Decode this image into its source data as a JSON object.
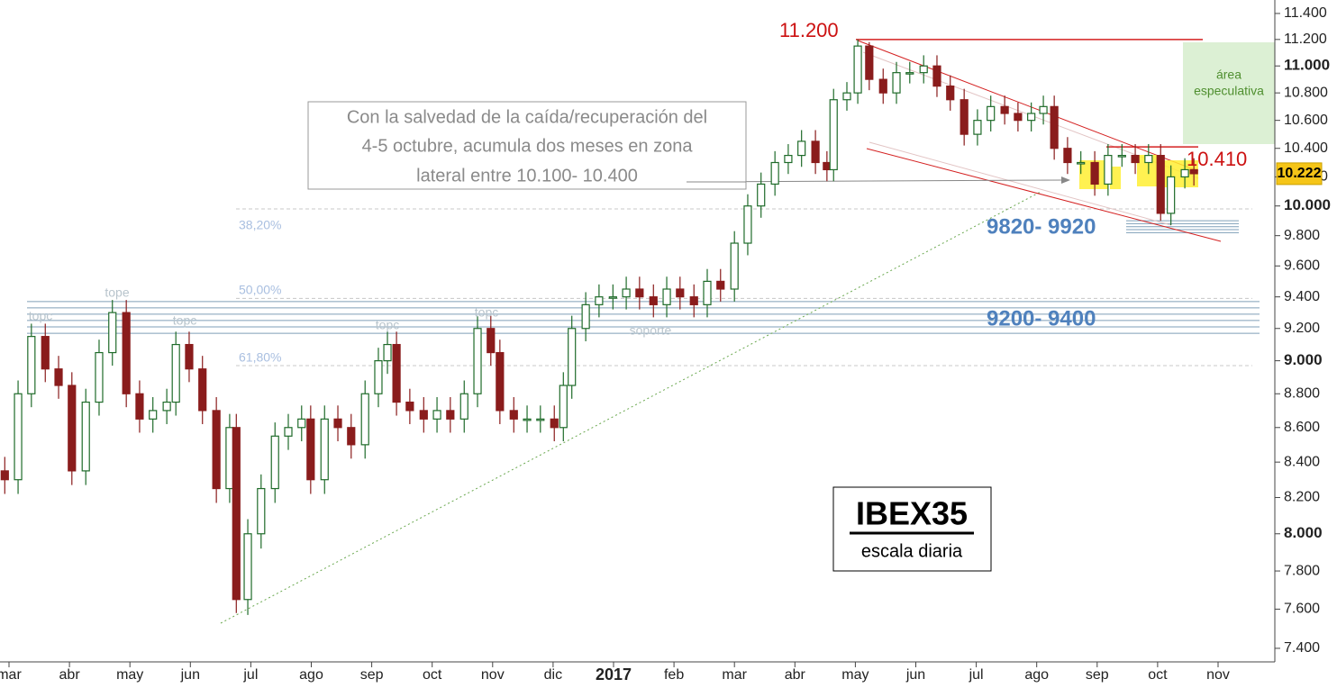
{
  "chart_data": {
    "type": "candlestick",
    "log_scale": true,
    "up_color": "#1f6b2a",
    "down_color": "#8a1c1c",
    "xlim": [
      -0.149,
      20.939
    ],
    "ylim": [
      7332,
      11505
    ],
    "xticks": [
      {
        "value": 0,
        "label": "mar"
      },
      {
        "value": 1,
        "label": "abr"
      },
      {
        "value": 2,
        "label": "may"
      },
      {
        "value": 3,
        "label": "jun"
      },
      {
        "value": 4,
        "label": "jul"
      },
      {
        "value": 5,
        "label": "ago"
      },
      {
        "value": 6,
        "label": "sep"
      },
      {
        "value": 7,
        "label": "oct"
      },
      {
        "value": 8,
        "label": "nov"
      },
      {
        "value": 9,
        "label": "dic"
      },
      {
        "value": 10,
        "label": "2017"
      },
      {
        "value": 11,
        "label": "feb"
      },
      {
        "value": 12,
        "label": "mar"
      },
      {
        "value": 13,
        "label": "abr"
      },
      {
        "value": 14,
        "label": "may"
      },
      {
        "value": 15,
        "label": "jun"
      },
      {
        "value": 16,
        "label": "jul"
      },
      {
        "value": 17,
        "label": "ago"
      },
      {
        "value": 18,
        "label": "sep"
      },
      {
        "value": 19,
        "label": "oct"
      },
      {
        "value": 20,
        "label": "nov"
      }
    ],
    "yticks": [
      {
        "value": 7400,
        "label": "7.400"
      },
      {
        "value": 7600,
        "label": "7.600"
      },
      {
        "value": 7800,
        "label": "7.800"
      },
      {
        "value": 8000,
        "label": "8.000"
      },
      {
        "value": 8200,
        "label": "8.200"
      },
      {
        "value": 8400,
        "label": "8.400"
      },
      {
        "value": 8600,
        "label": "8.600"
      },
      {
        "value": 8800,
        "label": "8.800"
      },
      {
        "value": 9000,
        "label": "9.000"
      },
      {
        "value": 9200,
        "label": "9.200"
      },
      {
        "value": 9400,
        "label": "9.400"
      },
      {
        "value": 9600,
        "label": "9.600"
      },
      {
        "value": 9800,
        "label": "9.800"
      },
      {
        "value": 10000,
        "label": "10.000"
      },
      {
        "value": 10200,
        "label": "10.200"
      },
      {
        "value": 10400,
        "label": "10.400"
      },
      {
        "value": 10600,
        "label": "10.600"
      },
      {
        "value": 10800,
        "label": "10.800"
      },
      {
        "value": 11000,
        "label": "11.000"
      },
      {
        "value": 11200,
        "label": "11.200"
      },
      {
        "value": 11400,
        "label": "11.400"
      }
    ],
    "x": [
      -0.07,
      0.15,
      0.37,
      0.6,
      0.82,
      1.04,
      1.27,
      1.49,
      1.71,
      1.94,
      2.16,
      2.38,
      2.61,
      2.76,
      2.98,
      3.2,
      3.43,
      3.65,
      3.76,
      3.95,
      4.17,
      4.4,
      4.62,
      4.84,
      4.99,
      5.22,
      5.44,
      5.66,
      5.89,
      6.11,
      6.26,
      6.41,
      6.63,
      6.86,
      7.08,
      7.3,
      7.53,
      7.75,
      7.97,
      8.12,
      8.35,
      8.57,
      8.79,
      9.02,
      9.17,
      9.31,
      9.54,
      9.76,
      9.99,
      10.21,
      10.43,
      10.66,
      10.88,
      11.1,
      11.33,
      11.55,
      11.77,
      12.0,
      12.22,
      12.44,
      12.67,
      12.89,
      13.11,
      13.34,
      13.53,
      13.64,
      13.86,
      14.04,
      14.23,
      14.46,
      14.68,
      14.9,
      15.13,
      15.35,
      15.57,
      15.8,
      16.02,
      16.24,
      16.47,
      16.69,
      16.91,
      17.11,
      17.29,
      17.51,
      17.73,
      17.96,
      18.18,
      18.41,
      18.63,
      18.85,
      19.05,
      19.22,
      19.45,
      19.6
    ],
    "open": [
      8350,
      8300,
      8800,
      9150,
      8950,
      8850,
      8350,
      8750,
      9050,
      9300,
      8800,
      8650,
      8700,
      8750,
      9100,
      8950,
      8700,
      8250,
      8600,
      7650,
      8000,
      8250,
      8550,
      8600,
      8650,
      8300,
      8650,
      8600,
      8500,
      8800,
      9000,
      9100,
      8750,
      8700,
      8650,
      8700,
      8650,
      8800,
      9200,
      9050,
      8700,
      8650,
      8650,
      8650,
      8600,
      8850,
      9200,
      9350,
      9400,
      9400,
      9450,
      9400,
      9350,
      9450,
      9400,
      9350,
      9500,
      9450,
      9750,
      10000,
      10150,
      10300,
      10350,
      10450,
      10300,
      10250,
      10750,
      10800,
      11150,
      10900,
      10800,
      10950,
      10950,
      11000,
      10850,
      10750,
      10500,
      10600,
      10700,
      10650,
      10600,
      10650,
      10700,
      10400,
      10300,
      10300,
      10150,
      10350,
      10350,
      10300,
      10350,
      9950,
      10200,
      10250
    ],
    "high": [
      8430,
      8880,
      9230,
      9230,
      9030,
      8930,
      8830,
      9130,
      9380,
      9380,
      8880,
      8780,
      8830,
      9180,
      9180,
      9030,
      8780,
      8680,
      8680,
      8080,
      8330,
      8630,
      8680,
      8730,
      8730,
      8730,
      8730,
      8680,
      8880,
      9080,
      9180,
      9180,
      8830,
      8780,
      8780,
      8780,
      8880,
      9280,
      9280,
      9130,
      8780,
      8730,
      8730,
      8730,
      8930,
      9280,
      9430,
      9480,
      9480,
      9530,
      9530,
      9480,
      9530,
      9530,
      9480,
      9580,
      9580,
      9830,
      10080,
      10230,
      10380,
      10430,
      10530,
      10530,
      10380,
      10830,
      10880,
      11200,
      11180,
      10980,
      11030,
      11030,
      11080,
      11080,
      10930,
      10830,
      10680,
      10780,
      10780,
      10730,
      10730,
      10780,
      10780,
      10480,
      10380,
      10380,
      10430,
      10430,
      10430,
      10430,
      10430,
      10280,
      10330,
      10330
    ],
    "low": [
      8220,
      8220,
      8720,
      8870,
      8770,
      8270,
      8270,
      8670,
      8970,
      8720,
      8570,
      8570,
      8620,
      8670,
      8870,
      8620,
      8170,
      8170,
      7580,
      7570,
      7920,
      8170,
      8470,
      8520,
      8220,
      8220,
      8520,
      8420,
      8420,
      8720,
      8920,
      8670,
      8620,
      8570,
      8570,
      8570,
      8570,
      8720,
      8970,
      8620,
      8570,
      8570,
      8570,
      8520,
      8520,
      8770,
      9120,
      9270,
      9320,
      9320,
      9320,
      9270,
      9270,
      9320,
      9270,
      9270,
      9370,
      9370,
      9670,
      9920,
      10070,
      10220,
      10270,
      10220,
      10170,
      10170,
      10670,
      10720,
      10820,
      10720,
      10720,
      10870,
      10870,
      10770,
      10670,
      10420,
      10420,
      10520,
      10570,
      10520,
      10520,
      10570,
      10320,
      10220,
      10220,
      10070,
      10070,
      10270,
      10220,
      10220,
      9900,
      9870,
      10120,
      10140
    ],
    "close": [
      8300,
      8800,
      9150,
      8950,
      8850,
      8350,
      8750,
      9050,
      9300,
      8800,
      8650,
      8700,
      8750,
      9100,
      8950,
      8700,
      8250,
      8600,
      7650,
      8000,
      8250,
      8550,
      8600,
      8650,
      8300,
      8650,
      8600,
      8500,
      8800,
      9000,
      9100,
      8750,
      8700,
      8650,
      8700,
      8650,
      8800,
      9200,
      9050,
      8700,
      8650,
      8650,
      8650,
      8600,
      8850,
      9200,
      9350,
      9400,
      9400,
      9450,
      9400,
      9350,
      9450,
      9400,
      9350,
      9500,
      9450,
      9750,
      10000,
      10150,
      10300,
      10350,
      10450,
      10300,
      10250,
      10750,
      10800,
      11150,
      10900,
      10800,
      10950,
      10950,
      11000,
      10850,
      10750,
      10500,
      10600,
      10700,
      10650,
      10600,
      10650,
      10700,
      10400,
      10300,
      10300,
      10150,
      10350,
      10350,
      10300,
      10350,
      9950,
      10200,
      10250,
      10222
    ],
    "last_price": {
      "value": 10222,
      "label": "10.222"
    },
    "levels": [
      {
        "label": "11.200",
        "value": 11200
      },
      {
        "label": "10.410",
        "value": 10410
      }
    ],
    "fibonacci": [
      {
        "label": "38,20%",
        "value": 9980
      },
      {
        "label": "50,00%",
        "value": 9390
      },
      {
        "label": "61,80%",
        "value": 8970
      }
    ],
    "bands": [
      {
        "label": "9820- 9920",
        "lines": [
          9900,
          9880,
          9860,
          9840,
          9820
        ]
      },
      {
        "label": "9200- 9400",
        "lines": [
          9370,
          9330,
          9290,
          9250,
          9210,
          9170
        ]
      }
    ],
    "annotations": [
      "tope",
      "topc",
      "topc",
      "topc",
      "topc",
      "soporte"
    ],
    "note": [
      "Con la salvedad de la caída/recuperación del",
      "4-5 octubre, acumula dos meses en zona",
      "lateral entre 10.100- 10.400"
    ],
    "zone_label": [
      "área",
      "especulativa"
    ],
    "watermark": {
      "title": "IBEX35",
      "subtitle": "escala diaria"
    }
  }
}
